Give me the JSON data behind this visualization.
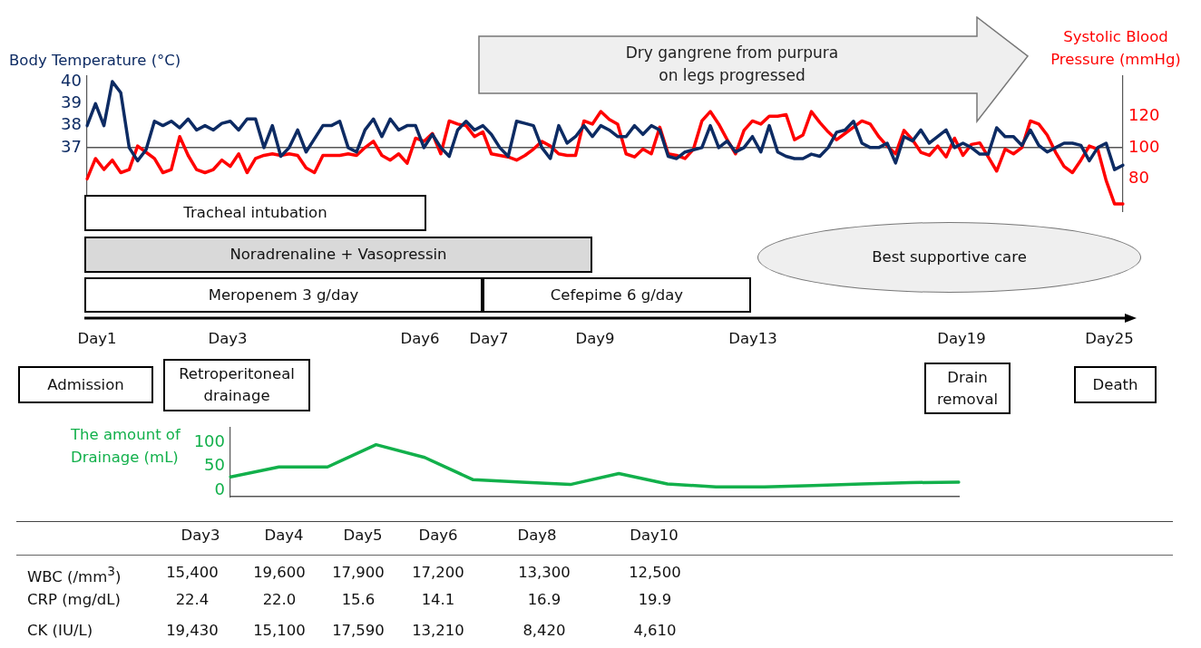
{
  "chart_data": [
    {
      "type": "line",
      "ylabel": "Body Temperature (°C)",
      "y2label": "Systolic Blood Pressure (mmHg)",
      "annotations": [
        "Dry gangrene from purpura on legs progressed"
      ],
      "categories": [
        null,
        null,
        null,
        null,
        null,
        null,
        null,
        null,
        null,
        null,
        null,
        null,
        null,
        null,
        null,
        null,
        null,
        null,
        null,
        null,
        null,
        null,
        null,
        null,
        null,
        null,
        null,
        null,
        null,
        null,
        null,
        null,
        null,
        null,
        null,
        null,
        null,
        null,
        null,
        null,
        null,
        null,
        null,
        null,
        null,
        null,
        null,
        null,
        null,
        null,
        null,
        null,
        null,
        null,
        null,
        null,
        null,
        null,
        null,
        null,
        null,
        null,
        null,
        null,
        null,
        null,
        null,
        null,
        null,
        null,
        null,
        null,
        null,
        null,
        null,
        null,
        null,
        null,
        null,
        null,
        null,
        null,
        null,
        null,
        null,
        null,
        null,
        null,
        null,
        null,
        null,
        null,
        null,
        null,
        null,
        null,
        null,
        null,
        null,
        null,
        null,
        null,
        null,
        null,
        null,
        null,
        null,
        null,
        null,
        null,
        null,
        null,
        null,
        null,
        null,
        null,
        null,
        null,
        null,
        null,
        null,
        null,
        null,
        null
      ],
      "series": [
        {
          "color": "#0d2b63",
          "values": [
            38.0,
            39.0,
            38.0,
            40.0,
            39.5,
            37.0,
            36.4,
            36.9,
            38.2,
            38.0,
            38.2,
            37.9,
            38.3,
            37.8,
            38.0,
            37.8,
            38.1,
            38.2,
            37.8,
            38.3,
            38.3,
            37.0,
            38.0,
            36.6,
            37.0,
            37.8,
            36.8,
            37.4,
            38.0,
            38.0,
            38.2,
            37.0,
            36.8,
            37.8,
            38.3,
            37.5,
            38.3,
            37.8,
            38.0,
            38.0,
            37.0,
            37.6,
            37.0,
            36.6,
            37.8,
            38.2,
            37.8,
            38.0,
            37.6,
            37.0,
            36.6,
            38.2,
            38.1,
            38.0,
            37.0,
            36.5,
            38.0,
            37.2,
            37.5,
            38.0,
            37.5,
            38.0,
            37.8,
            37.5,
            37.5,
            38.0,
            37.6,
            38.0,
            37.8,
            36.6,
            36.5,
            36.8,
            36.9,
            37.0,
            38.0,
            37.0,
            37.3,
            36.8,
            37.0,
            37.5,
            36.8,
            38.0,
            36.8,
            36.6,
            36.5,
            36.5,
            36.7,
            36.6,
            37.0,
            37.7,
            37.8,
            38.2,
            37.2,
            37.0,
            37.0,
            37.2,
            36.3,
            37.5,
            37.3,
            37.8,
            37.2,
            37.5,
            37.8,
            37.0,
            37.2,
            37.0,
            36.7,
            36.7,
            37.9,
            37.5,
            37.5,
            37.1,
            37.8,
            37.1,
            36.8,
            37.0,
            37.2,
            37.2,
            37.1,
            36.4,
            37.0,
            37.2,
            36.0,
            36.2
          ]
        },
        {
          "color": "#ff0000",
          "axis": "y2",
          "values": [
            80,
            93,
            86,
            92,
            84,
            86,
            101,
            97,
            93,
            84,
            86,
            107,
            95,
            86,
            84,
            86,
            92,
            88,
            96,
            84,
            93,
            95,
            96,
            95,
            96,
            95,
            87,
            84,
            95,
            95,
            95,
            96,
            95,
            100,
            104,
            95,
            92,
            96,
            90,
            106,
            104,
            109,
            96,
            117,
            115,
            114,
            107,
            110,
            96,
            95,
            94,
            92,
            95,
            99,
            104,
            101,
            96,
            95,
            95,
            117,
            115,
            123,
            118,
            115,
            96,
            94,
            99,
            96,
            113,
            96,
            95,
            93,
            99,
            117,
            123,
            115,
            105,
            96,
            111,
            117,
            115,
            120,
            120,
            121,
            105,
            108,
            123,
            116,
            110,
            105,
            109,
            113,
            117,
            115,
            107,
            101,
            96,
            111,
            105,
            97,
            95,
            101,
            94,
            106,
            95,
            102,
            103,
            94,
            85,
            99,
            96,
            100,
            117,
            115,
            108,
            97,
            88,
            84,
            92,
            101,
            99,
            79,
            64,
            64
          ]
        }
      ],
      "ylim": [
        34.1,
        40.25
      ],
      "yticks": [
        37,
        38,
        39,
        40
      ],
      "y2lim": [
        59.3,
        145.6
      ],
      "y2ticks": [
        80,
        100,
        120
      ],
      "ref_lines": [
        {
          "axis": "y",
          "value": 37,
          "color": "#555555"
        }
      ]
    },
    {
      "type": "other",
      "annotations": [
        "Tracheal intubation",
        "Noradrenaline + Vasopressin",
        "Meropenem 3 g/day",
        "Cefepime 6 g/day",
        "Best supportive care",
        "Day1",
        "Day3",
        "Day6",
        "Day7",
        "Day9",
        "Day13",
        "Day19",
        "Day25",
        "Admission",
        "Retroperitoneal drainage",
        "Drain removal",
        "Death"
      ]
    },
    {
      "type": "line",
      "ylabel": "The amount of Drainage (mL)",
      "categories": [
        null,
        null,
        null,
        null,
        null,
        null,
        null,
        null,
        null,
        null,
        null,
        null,
        null,
        null,
        null,
        null
      ],
      "color": "#12b04b",
      "values": [
        28,
        49,
        49,
        96,
        69,
        22,
        17,
        12,
        35,
        13,
        7,
        7,
        10,
        13,
        16,
        17
      ],
      "ylim": [
        -14,
        132
      ],
      "yticks": [
        0,
        50,
        100
      ]
    },
    {
      "type": "other",
      "categories": [
        "Day3",
        "Day4",
        "Day5",
        "Day6",
        "Day8",
        "Day10"
      ],
      "series": [
        {
          "name": "WBC (/mm$^{3}$)",
          "values": [
            15400,
            19600,
            17900,
            17200,
            13300,
            12500
          ],
          "value_labels": [
            "15,400",
            "19,600",
            "17,900",
            "17,200",
            "13,300",
            "12,500"
          ]
        },
        {
          "name": "CRP (mg/dL)",
          "values": [
            22.4,
            22.0,
            15.6,
            14.1,
            16.9,
            19.9
          ],
          "value_labels": [
            "22.4",
            "22.0",
            "15.6",
            "14.1",
            "16.9",
            "19.9"
          ]
        },
        {
          "name": "CK (IU/L)",
          "values": [
            19430,
            15100,
            17590,
            13210,
            8420,
            4610
          ],
          "value_labels": [
            "19,430",
            "15,100",
            "17,590",
            "13,210",
            "8,420",
            "4,610"
          ]
        }
      ]
    }
  ]
}
